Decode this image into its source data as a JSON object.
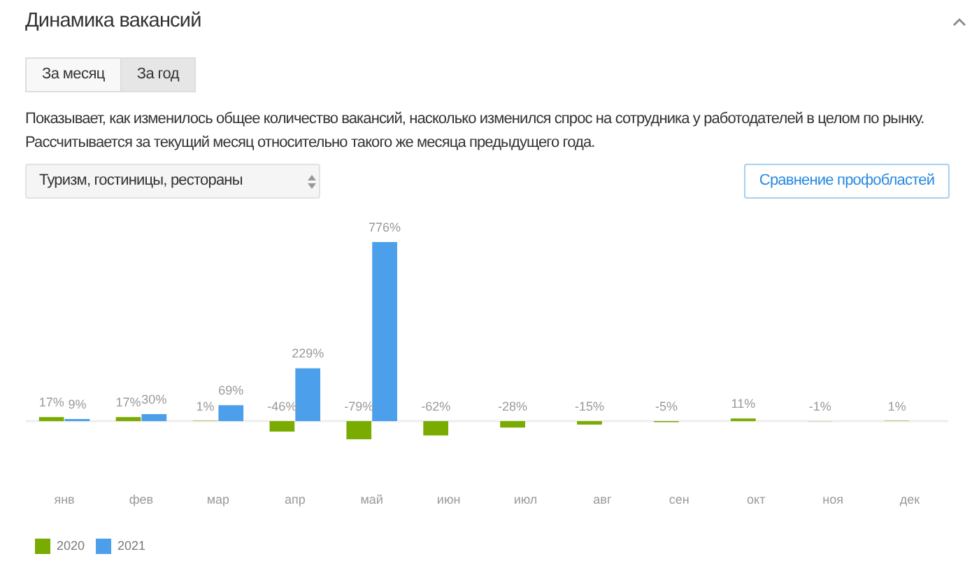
{
  "chart_data": {
    "type": "bar",
    "title": "Динамика вакансий",
    "subtitle": "Показывает, как изменилось общее количество вакансий, насколько изменился спрос на сотрудника у работодателей в целом по рынку. Рассчитывается за текущий месяц относительно такого же месяца предыдущего года.",
    "annotations": [
      "За месяц",
      "За год",
      "Туризм, гостиницы, рестораны",
      "Сравнение профобластей"
    ],
    "categories": [
      "янв",
      "фев",
      "мар",
      "апр",
      "май",
      "июн",
      "июл",
      "авг",
      "сен",
      "окт",
      "ноя",
      "дек"
    ],
    "series": [
      {
        "name": "2020",
        "color": "#7aab00",
        "values": [
          17,
          17,
          1,
          -46,
          -79,
          -62,
          -28,
          -15,
          -5,
          11,
          -1,
          1
        ],
        "value_labels": [
          "17%",
          "17%",
          "1%",
          "-46%",
          "-79%",
          "-62%",
          "-28%",
          "-15%",
          "-5%",
          "11%",
          "-1%",
          "1%"
        ]
      },
      {
        "name": "2021",
        "color": "#4c9fea",
        "values": [
          9,
          30,
          69,
          229,
          776,
          null,
          null,
          null,
          null,
          null,
          null,
          null
        ],
        "value_labels": [
          "9%",
          "30%",
          "69%",
          "229%",
          "776%",
          null,
          null,
          null,
          null,
          null,
          null,
          null
        ]
      }
    ],
    "ref_lines": [
      {
        "axis": "y",
        "value": 0,
        "color": "#eeeeee"
      }
    ],
    "legend": "bottom left",
    "grid": false,
    "tick_labels": "x"
  }
}
